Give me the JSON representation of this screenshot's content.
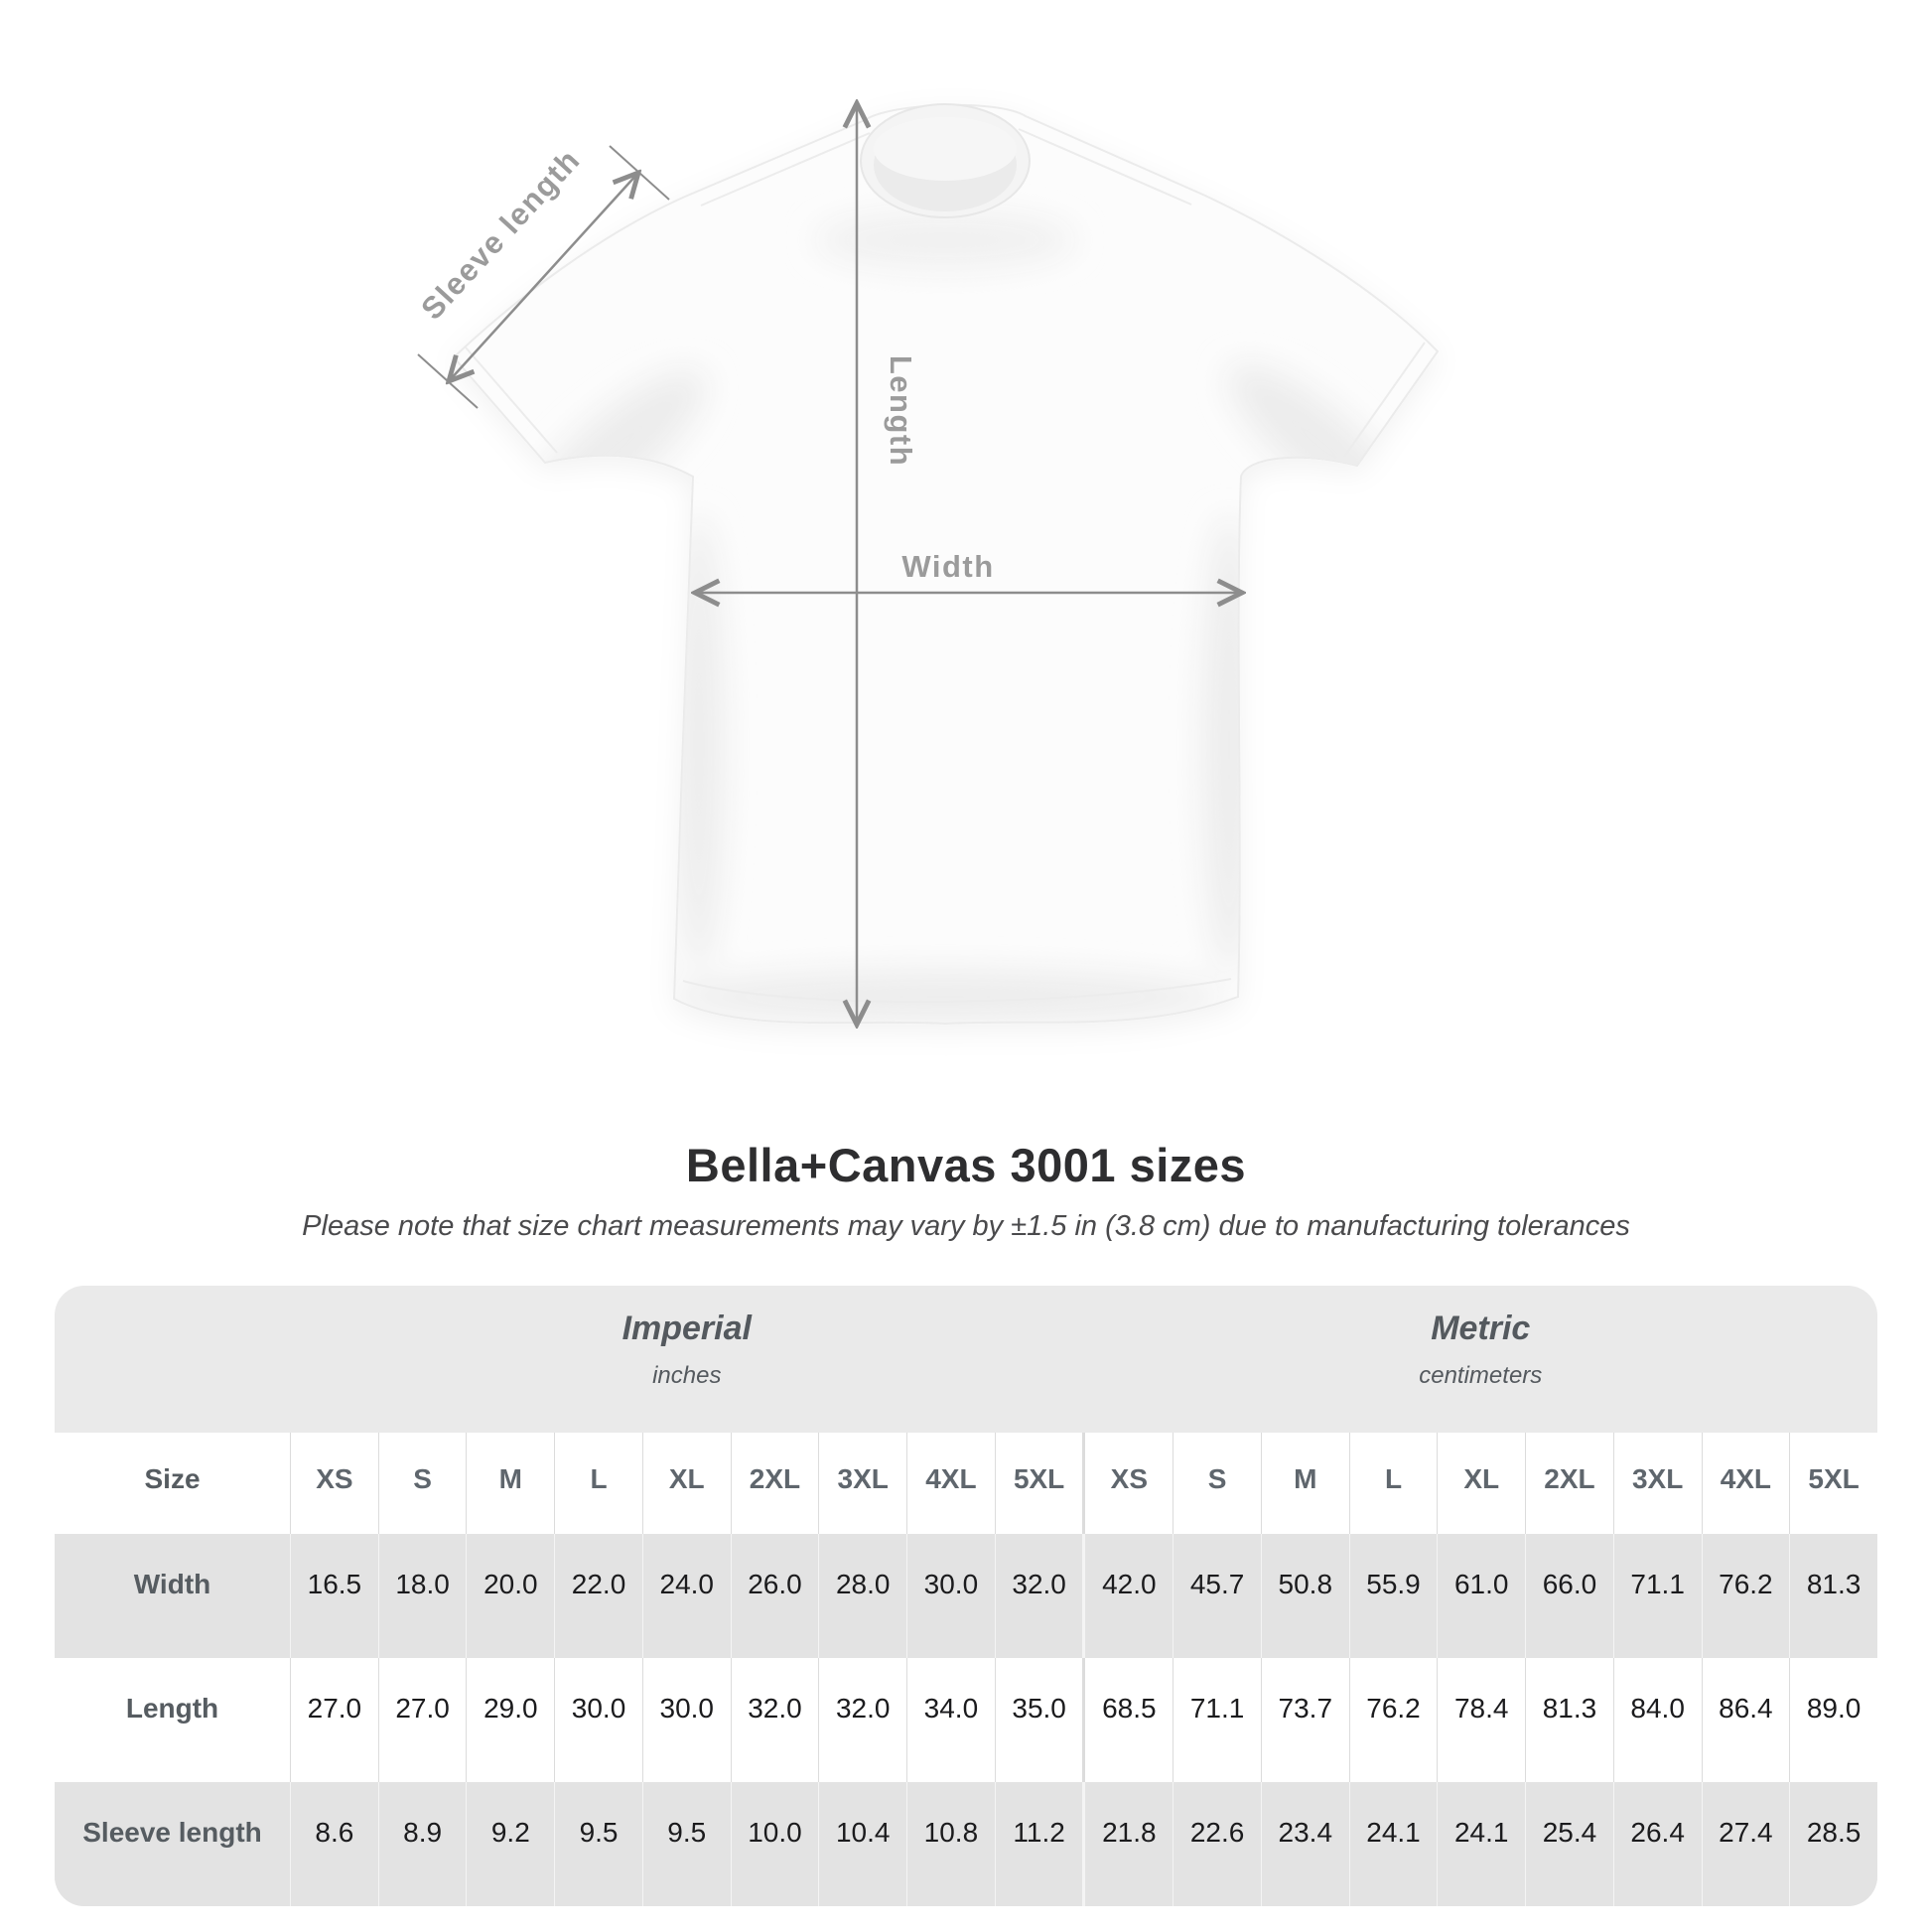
{
  "diagram": {
    "labels": {
      "sleeve": "Sleeve length",
      "length": "Length",
      "width": "Width"
    }
  },
  "title": "Bella+Canvas 3001 sizes",
  "subtitle": "Please note that size chart measurements may vary by ±1.5 in (3.8 cm) due to manufacturing tolerances",
  "table": {
    "groups": [
      {
        "label": "Imperial",
        "unit": "inches"
      },
      {
        "label": "Metric",
        "unit": "centimeters"
      }
    ],
    "size_header": "Size",
    "sizes": [
      "XS",
      "S",
      "M",
      "L",
      "XL",
      "2XL",
      "3XL",
      "4XL",
      "5XL"
    ],
    "rows": [
      {
        "label": "Width",
        "imperial": [
          "16.5",
          "18.0",
          "20.0",
          "22.0",
          "24.0",
          "26.0",
          "28.0",
          "30.0",
          "32.0"
        ],
        "metric": [
          "42.0",
          "45.7",
          "50.8",
          "55.9",
          "61.0",
          "66.0",
          "71.1",
          "76.2",
          "81.3"
        ]
      },
      {
        "label": "Length",
        "imperial": [
          "27.0",
          "27.0",
          "29.0",
          "30.0",
          "30.0",
          "32.0",
          "32.0",
          "34.0",
          "35.0"
        ],
        "metric": [
          "68.5",
          "71.1",
          "73.7",
          "76.2",
          "78.4",
          "81.3",
          "84.0",
          "86.4",
          "89.0"
        ]
      },
      {
        "label": "Sleeve length",
        "imperial": [
          "8.6",
          "8.9",
          "9.2",
          "9.5",
          "9.5",
          "10.0",
          "10.4",
          "10.8",
          "11.2"
        ],
        "metric": [
          "21.8",
          "22.6",
          "23.4",
          "24.1",
          "24.1",
          "25.4",
          "26.4",
          "27.4",
          "28.5"
        ]
      }
    ]
  },
  "chart_data": {
    "type": "table",
    "title": "Bella+Canvas 3001 sizes",
    "note": "Please note that size chart measurements may vary by ±1.5 in (3.8 cm) due to manufacturing tolerances",
    "columns": [
      "XS",
      "S",
      "M",
      "L",
      "XL",
      "2XL",
      "3XL",
      "4XL",
      "5XL"
    ],
    "rows": [
      {
        "measurement": "Width",
        "unit": "in",
        "values": [
          16.5,
          18.0,
          20.0,
          22.0,
          24.0,
          26.0,
          28.0,
          30.0,
          32.0
        ]
      },
      {
        "measurement": "Length",
        "unit": "in",
        "values": [
          27.0,
          27.0,
          29.0,
          30.0,
          30.0,
          32.0,
          32.0,
          34.0,
          35.0
        ]
      },
      {
        "measurement": "Sleeve length",
        "unit": "in",
        "values": [
          8.6,
          8.9,
          9.2,
          9.5,
          9.5,
          10.0,
          10.4,
          10.8,
          11.2
        ]
      },
      {
        "measurement": "Width",
        "unit": "cm",
        "values": [
          42.0,
          45.7,
          50.8,
          55.9,
          61.0,
          66.0,
          71.1,
          76.2,
          81.3
        ]
      },
      {
        "measurement": "Length",
        "unit": "cm",
        "values": [
          68.5,
          71.1,
          73.7,
          76.2,
          78.4,
          81.3,
          84.0,
          86.4,
          89.0
        ]
      },
      {
        "measurement": "Sleeve length",
        "unit": "cm",
        "values": [
          21.8,
          22.6,
          23.4,
          24.1,
          24.1,
          25.4,
          26.4,
          27.4,
          28.5
        ]
      }
    ]
  }
}
